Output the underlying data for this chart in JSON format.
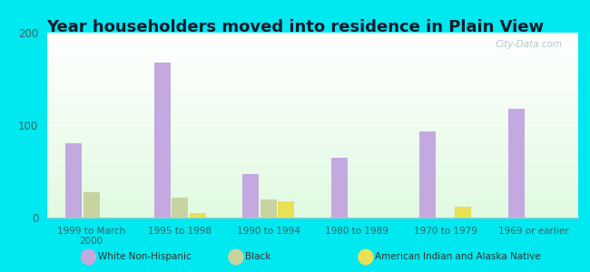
{
  "title": "Year householders moved into residence in Plain View",
  "categories": [
    "1999 to March\n2000",
    "1995 to 1998",
    "1990 to 1994",
    "1980 to 1989",
    "1970 to 1979",
    "1969 or earlier"
  ],
  "white_non_hispanic": [
    80,
    168,
    47,
    65,
    93,
    118
  ],
  "black": [
    27,
    22,
    20,
    0,
    0,
    0
  ],
  "american_indian": [
    0,
    5,
    18,
    0,
    12,
    0
  ],
  "white_color": "#c4a8e0",
  "black_color": "#c8d4a0",
  "american_indian_color": "#e8e055",
  "background_outer": "#00e8f0",
  "ylim": [
    0,
    200
  ],
  "yticks": [
    0,
    100,
    200
  ],
  "title_fontsize": 13,
  "bar_width": 0.18,
  "bar_gap": 0.02,
  "watermark": "City-Data.com"
}
